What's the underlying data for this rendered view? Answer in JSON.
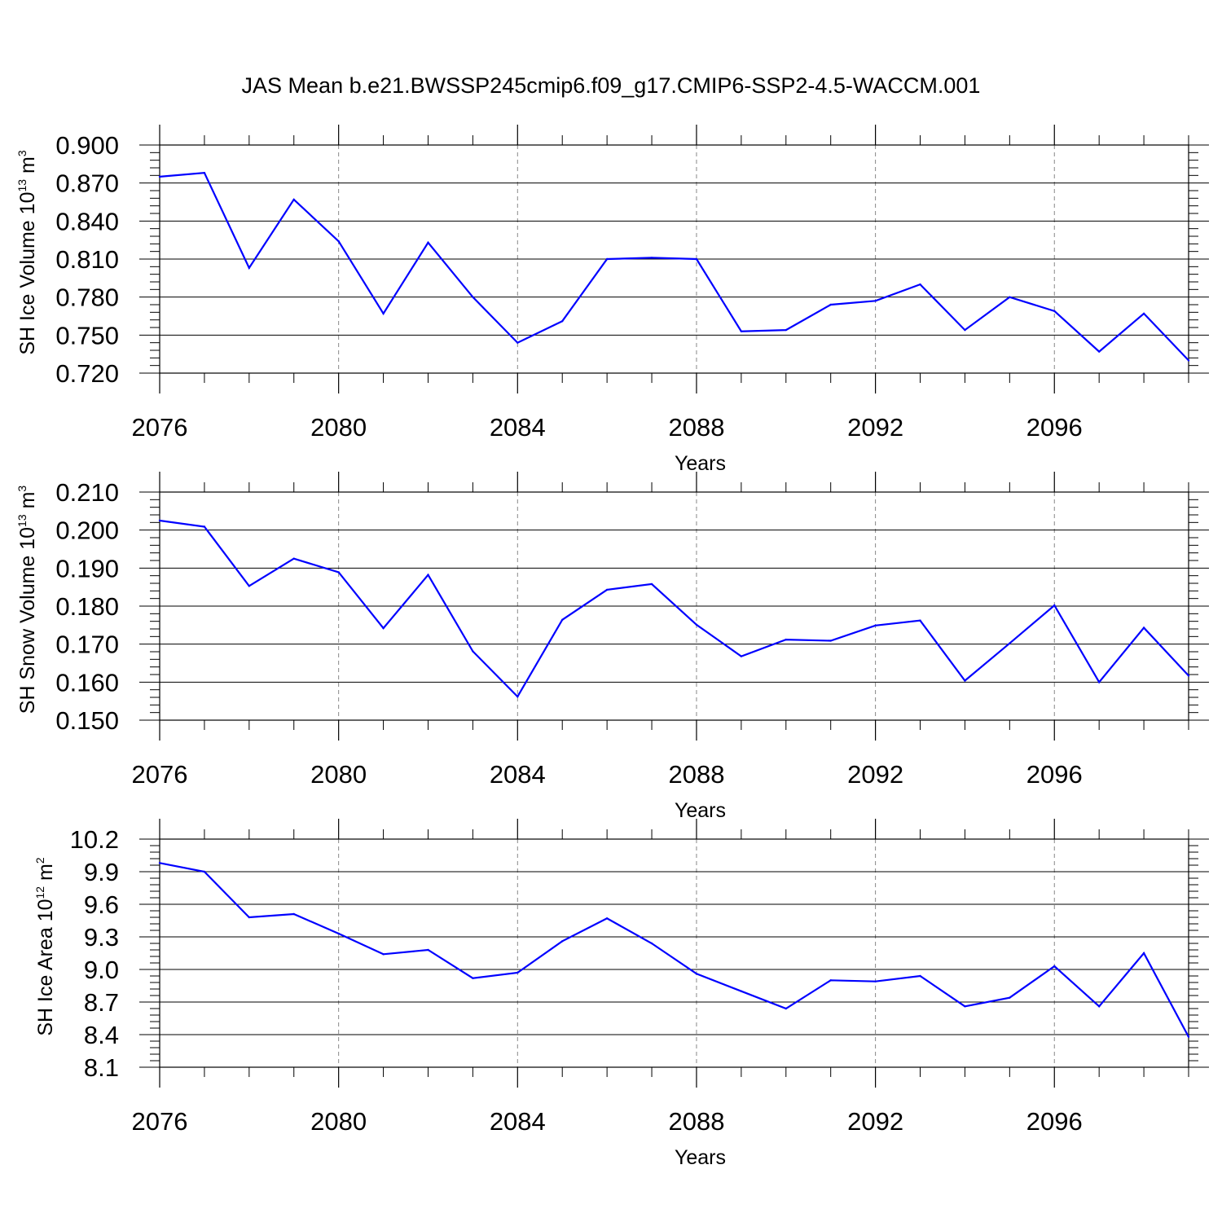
{
  "title": "JAS Mean b.e21.BWSSP245cmip6.f09_g17.CMIP6-SSP2-4.5-WACCM.001",
  "colors": {
    "line": "#0000ff",
    "frame": "#000000",
    "grid": "#888888"
  },
  "chart_data": [
    {
      "type": "line",
      "ylabel": {
        "text": "SH Ice Volume 10",
        "exp": "13",
        "unit": " m",
        "unit_exp": "3"
      },
      "xlabel": "Years",
      "xlim": [
        2076,
        2099
      ],
      "xticks": [
        2076,
        2080,
        2084,
        2088,
        2092,
        2096
      ],
      "xtick_labels": [
        "2076",
        "2080",
        "2084",
        "2088",
        "2092",
        "2096"
      ],
      "ylim": [
        0.72,
        0.9
      ],
      "yticks": [
        0.72,
        0.75,
        0.78,
        0.81,
        0.84,
        0.87,
        0.9
      ],
      "ytick_labels": [
        "0.720",
        "0.750",
        "0.780",
        "0.810",
        "0.840",
        "0.870",
        "0.900"
      ],
      "grid": "vertical dashed at labeled years",
      "x": [
        2076,
        2077,
        2078,
        2079,
        2080,
        2081,
        2082,
        2083,
        2084,
        2085,
        2086,
        2087,
        2088,
        2089,
        2090,
        2091,
        2092,
        2093,
        2094,
        2095,
        2096,
        2097,
        2098,
        2099
      ],
      "values": [
        0.875,
        0.878,
        0.803,
        0.857,
        0.824,
        0.767,
        0.823,
        0.78,
        0.744,
        0.761,
        0.81,
        0.811,
        0.81,
        0.753,
        0.754,
        0.774,
        0.777,
        0.79,
        0.754,
        0.78,
        0.769,
        0.737,
        0.767,
        0.73
      ]
    },
    {
      "type": "line",
      "ylabel": {
        "text": "SH Snow Volume 10",
        "exp": "13",
        "unit": " m",
        "unit_exp": "3"
      },
      "xlabel": "Years",
      "xlim": [
        2076,
        2099
      ],
      "xticks": [
        2076,
        2080,
        2084,
        2088,
        2092,
        2096
      ],
      "xtick_labels": [
        "2076",
        "2080",
        "2084",
        "2088",
        "2092",
        "2096"
      ],
      "ylim": [
        0.15,
        0.21
      ],
      "yticks": [
        0.15,
        0.16,
        0.17,
        0.18,
        0.19,
        0.2,
        0.21
      ],
      "ytick_labels": [
        "0.150",
        "0.160",
        "0.170",
        "0.180",
        "0.190",
        "0.200",
        "0.210"
      ],
      "grid": "vertical dashed at labeled years",
      "x": [
        2076,
        2077,
        2078,
        2079,
        2080,
        2081,
        2082,
        2083,
        2084,
        2085,
        2086,
        2087,
        2088,
        2089,
        2090,
        2091,
        2092,
        2093,
        2094,
        2095,
        2096,
        2097,
        2098,
        2099
      ],
      "values": [
        0.2025,
        0.2009,
        0.1853,
        0.1925,
        0.1889,
        0.1742,
        0.1882,
        0.1681,
        0.1562,
        0.1764,
        0.1843,
        0.1858,
        0.1751,
        0.1668,
        0.1712,
        0.1709,
        0.1749,
        0.1762,
        0.1604,
        0.1702,
        0.1802,
        0.16,
        0.1743,
        0.1617
      ]
    },
    {
      "type": "line",
      "ylabel": {
        "text": "SH Ice Area 10",
        "exp": "12",
        "unit": " m",
        "unit_exp": "2"
      },
      "xlabel": "Years",
      "xlim": [
        2076,
        2099
      ],
      "xticks": [
        2076,
        2080,
        2084,
        2088,
        2092,
        2096
      ],
      "xtick_labels": [
        "2076",
        "2080",
        "2084",
        "2088",
        "2092",
        "2096"
      ],
      "ylim": [
        8.1,
        10.2
      ],
      "yticks": [
        8.1,
        8.4,
        8.7,
        9.0,
        9.3,
        9.6,
        9.9,
        10.2
      ],
      "ytick_labels": [
        "8.1",
        "8.4",
        "8.7",
        "9.0",
        "9.3",
        "9.6",
        "9.9",
        "10.2"
      ],
      "grid": "vertical dashed at labeled years",
      "x": [
        2076,
        2077,
        2078,
        2079,
        2080,
        2081,
        2082,
        2083,
        2084,
        2085,
        2086,
        2087,
        2088,
        2089,
        2090,
        2091,
        2092,
        2093,
        2094,
        2095,
        2096,
        2097,
        2098,
        2099
      ],
      "values": [
        9.98,
        9.9,
        9.48,
        9.51,
        9.33,
        9.14,
        9.18,
        8.92,
        8.97,
        9.26,
        9.47,
        9.24,
        8.96,
        8.8,
        8.64,
        8.9,
        8.89,
        8.94,
        8.66,
        8.74,
        9.03,
        8.66,
        9.15,
        8.38
      ]
    }
  ]
}
